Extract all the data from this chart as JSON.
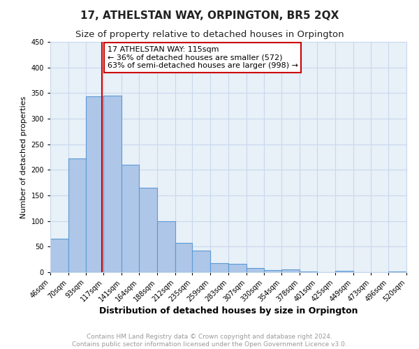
{
  "title": "17, ATHELSTAN WAY, ORPINGTON, BR5 2QX",
  "subtitle": "Size of property relative to detached houses in Orpington",
  "xlabel": "Distribution of detached houses by size in Orpington",
  "ylabel": "Number of detached properties",
  "bin_labels": [
    "46sqm",
    "70sqm",
    "93sqm",
    "117sqm",
    "141sqm",
    "164sqm",
    "188sqm",
    "212sqm",
    "235sqm",
    "259sqm",
    "283sqm",
    "307sqm",
    "330sqm",
    "354sqm",
    "378sqm",
    "401sqm",
    "425sqm",
    "449sqm",
    "473sqm",
    "496sqm",
    "520sqm"
  ],
  "bin_edges": [
    46,
    70,
    93,
    117,
    141,
    164,
    188,
    212,
    235,
    259,
    283,
    307,
    330,
    354,
    378,
    401,
    425,
    449,
    473,
    496,
    520
  ],
  "bar_heights": [
    65,
    222,
    343,
    345,
    210,
    165,
    99,
    57,
    42,
    18,
    17,
    8,
    4,
    5,
    2,
    0,
    3,
    0,
    0,
    2
  ],
  "bar_color": "#aec6e8",
  "bar_edge_color": "#5b9bd5",
  "property_size": 115,
  "vline_color": "#cc0000",
  "annotation_line1": "17 ATHELSTAN WAY: 115sqm",
  "annotation_line2": "← 36% of detached houses are smaller (572)",
  "annotation_line3": "63% of semi-detached houses are larger (998) →",
  "annotation_box_color": "#ffffff",
  "annotation_border_color": "#cc0000",
  "ylim": [
    0,
    450
  ],
  "yticks": [
    0,
    50,
    100,
    150,
    200,
    250,
    300,
    350,
    400,
    450
  ],
  "grid_color": "#c8d8ec",
  "background_color": "#e8f0f8",
  "footer_text": "Contains HM Land Registry data © Crown copyright and database right 2024.\nContains public sector information licensed under the Open Government Licence v3.0.",
  "title_fontsize": 11,
  "subtitle_fontsize": 9.5,
  "xlabel_fontsize": 9,
  "ylabel_fontsize": 8,
  "tick_fontsize": 7,
  "annotation_fontsize": 8,
  "footer_fontsize": 6.5
}
